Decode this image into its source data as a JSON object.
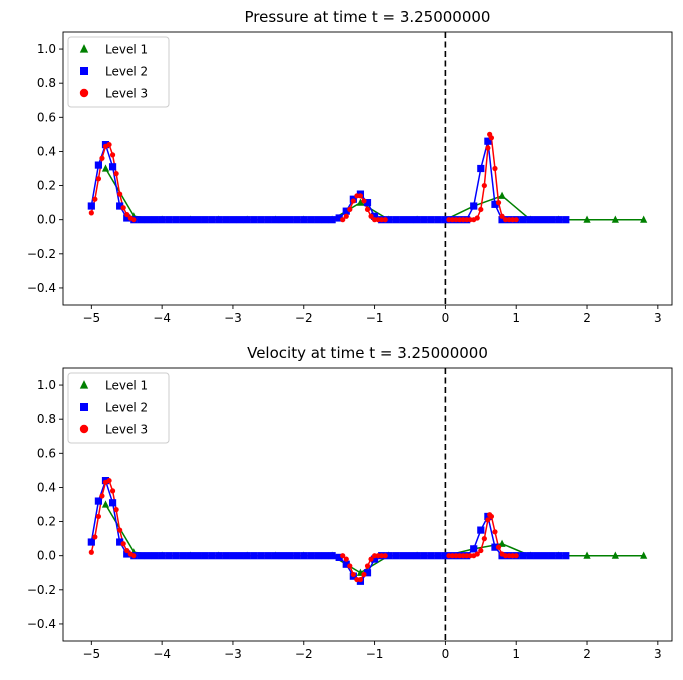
{
  "chart_data": [
    {
      "type": "line",
      "title": "Pressure at time t =     3.25000000",
      "xlabel": "",
      "ylabel": "",
      "xlim": [
        -5.4,
        3.2
      ],
      "ylim": [
        -0.5,
        1.1
      ],
      "xticks": [
        -5,
        -4,
        -3,
        -2,
        -1,
        0,
        1,
        2,
        3
      ],
      "xtick_labels": [
        "−5",
        "−4",
        "−3",
        "−2",
        "−1",
        "0",
        "1",
        "2",
        "3"
      ],
      "yticks": [
        -0.4,
        -0.2,
        0.0,
        0.2,
        0.4,
        0.6,
        0.8,
        1.0
      ],
      "ytick_labels": [
        "−0.4",
        "−0.2",
        "0.0",
        "0.2",
        "0.4",
        "0.6",
        "0.8",
        "1.0"
      ],
      "grid": false,
      "legend_position": "top-left",
      "vline_x": 0,
      "series": [
        {
          "name": "Level 1",
          "marker": "triangle",
          "color": "#008000",
          "x": [
            -4.8,
            -4.4,
            -4.0,
            -3.6,
            -3.2,
            -2.8,
            -2.4,
            -2.0,
            -1.6,
            -1.2,
            -0.8,
            -0.4,
            0.0,
            0.4,
            0.8,
            1.2,
            1.6,
            2.0,
            2.4,
            2.8
          ],
          "y": [
            0.3,
            0.02,
            0.0,
            0.0,
            0.0,
            0.0,
            0.0,
            0.0,
            0.0,
            0.1,
            0.0,
            0.0,
            0.0,
            0.08,
            0.14,
            0.0,
            0.0,
            0.0,
            0.0,
            0.0
          ]
        },
        {
          "name": "Level 2",
          "marker": "square",
          "color": "#0000ff",
          "x": [
            -5.0,
            -4.9,
            -4.8,
            -4.7,
            -4.6,
            -4.5,
            -4.4,
            -4.3,
            -4.2,
            -4.1,
            -4.0,
            -3.9,
            -3.8,
            -3.7,
            -3.6,
            -3.5,
            -3.4,
            -3.3,
            -3.2,
            -3.1,
            -3.0,
            -2.9,
            -2.8,
            -2.7,
            -2.6,
            -2.5,
            -2.4,
            -2.3,
            -2.2,
            -2.1,
            -2.0,
            -1.9,
            -1.8,
            -1.7,
            -1.6,
            -1.5,
            -1.4,
            -1.3,
            -1.2,
            -1.1,
            -1.0,
            -0.9,
            -0.8,
            -0.7,
            -0.6,
            -0.5,
            -0.4,
            -0.3,
            -0.2,
            -0.1,
            0.0,
            0.1,
            0.2,
            0.3,
            0.4,
            0.5,
            0.6,
            0.7,
            0.8,
            0.9,
            1.0,
            1.1,
            1.2,
            1.3,
            1.4,
            1.5,
            1.6,
            1.7
          ],
          "y": [
            0.08,
            0.32,
            0.44,
            0.31,
            0.08,
            0.01,
            0.0,
            0.0,
            0.0,
            0.0,
            0.0,
            0.0,
            0.0,
            0.0,
            0.0,
            0.0,
            0.0,
            0.0,
            0.0,
            0.0,
            0.0,
            0.0,
            0.0,
            0.0,
            0.0,
            0.0,
            0.0,
            0.0,
            0.0,
            0.0,
            0.0,
            0.0,
            0.0,
            0.0,
            0.0,
            0.01,
            0.05,
            0.12,
            0.15,
            0.1,
            0.02,
            0.0,
            0.0,
            0.0,
            0.0,
            0.0,
            0.0,
            0.0,
            0.0,
            0.0,
            0.0,
            0.0,
            0.0,
            0.0,
            0.08,
            0.3,
            0.46,
            0.09,
            0.0,
            0.0,
            0.0,
            0.0,
            0.0,
            0.0,
            0.0,
            0.0,
            0.0,
            0.0
          ]
        },
        {
          "name": "Level 3",
          "marker": "circle",
          "color": "#ff0000",
          "x": [
            -5.0,
            -4.95,
            -4.9,
            -4.85,
            -4.8,
            -4.75,
            -4.7,
            -4.65,
            -4.6,
            -4.55,
            -4.5,
            -4.45,
            -4.4,
            -1.45,
            -1.4,
            -1.35,
            -1.3,
            -1.25,
            -1.2,
            -1.15,
            -1.1,
            -1.05,
            -1.0,
            -0.95,
            -0.9,
            -0.85,
            0.05,
            0.1,
            0.15,
            0.2,
            0.25,
            0.3,
            0.35,
            0.4,
            0.45,
            0.5,
            0.55,
            0.6,
            0.625,
            0.65,
            0.7,
            0.75,
            0.8,
            0.85,
            0.9,
            0.95,
            1.0
          ],
          "y": [
            0.04,
            0.12,
            0.24,
            0.36,
            0.43,
            0.44,
            0.38,
            0.27,
            0.15,
            0.07,
            0.03,
            0.01,
            0.0,
            0.0,
            0.02,
            0.06,
            0.11,
            0.14,
            0.14,
            0.11,
            0.06,
            0.02,
            0.0,
            0.0,
            0.0,
            0.0,
            0.0,
            0.0,
            0.0,
            0.0,
            0.0,
            0.0,
            0.0,
            0.0,
            0.01,
            0.06,
            0.2,
            0.42,
            0.5,
            0.48,
            0.3,
            0.1,
            0.02,
            0.0,
            0.0,
            0.0,
            0.0
          ]
        }
      ]
    },
    {
      "type": "line",
      "title": "Velocity at time t =     3.25000000",
      "xlabel": "",
      "ylabel": "",
      "xlim": [
        -5.4,
        3.2
      ],
      "ylim": [
        -0.5,
        1.1
      ],
      "xticks": [
        -5,
        -4,
        -3,
        -2,
        -1,
        0,
        1,
        2,
        3
      ],
      "xtick_labels": [
        "−5",
        "−4",
        "−3",
        "−2",
        "−1",
        "0",
        "1",
        "2",
        "3"
      ],
      "yticks": [
        -0.4,
        -0.2,
        0.0,
        0.2,
        0.4,
        0.6,
        0.8,
        1.0
      ],
      "ytick_labels": [
        "−0.4",
        "−0.2",
        "0.0",
        "0.2",
        "0.4",
        "0.6",
        "0.8",
        "1.0"
      ],
      "grid": false,
      "legend_position": "top-left",
      "vline_x": 0,
      "series": [
        {
          "name": "Level 1",
          "marker": "triangle",
          "color": "#008000",
          "x": [
            -4.8,
            -4.4,
            -4.0,
            -3.6,
            -3.2,
            -2.8,
            -2.4,
            -2.0,
            -1.6,
            -1.2,
            -0.8,
            -0.4,
            0.0,
            0.4,
            0.8,
            1.2,
            1.6,
            2.0,
            2.4,
            2.8
          ],
          "y": [
            0.3,
            0.02,
            0.0,
            0.0,
            0.0,
            0.0,
            0.0,
            0.0,
            0.0,
            -0.1,
            0.0,
            0.0,
            0.0,
            0.04,
            0.07,
            0.0,
            0.0,
            0.0,
            0.0,
            0.0
          ]
        },
        {
          "name": "Level 2",
          "marker": "square",
          "color": "#0000ff",
          "x": [
            -5.0,
            -4.9,
            -4.8,
            -4.7,
            -4.6,
            -4.5,
            -4.4,
            -4.3,
            -4.2,
            -4.1,
            -4.0,
            -3.9,
            -3.8,
            -3.7,
            -3.6,
            -3.5,
            -3.4,
            -3.3,
            -3.2,
            -3.1,
            -3.0,
            -2.9,
            -2.8,
            -2.7,
            -2.6,
            -2.5,
            -2.4,
            -2.3,
            -2.2,
            -2.1,
            -2.0,
            -1.9,
            -1.8,
            -1.7,
            -1.6,
            -1.5,
            -1.4,
            -1.3,
            -1.2,
            -1.1,
            -1.0,
            -0.9,
            -0.8,
            -0.7,
            -0.6,
            -0.5,
            -0.4,
            -0.3,
            -0.2,
            -0.1,
            0.0,
            0.1,
            0.2,
            0.3,
            0.4,
            0.5,
            0.6,
            0.7,
            0.8,
            0.9,
            1.0,
            1.1,
            1.2,
            1.3,
            1.4,
            1.5,
            1.6,
            1.7
          ],
          "y": [
            0.08,
            0.32,
            0.44,
            0.31,
            0.08,
            0.01,
            0.0,
            0.0,
            0.0,
            0.0,
            0.0,
            0.0,
            0.0,
            0.0,
            0.0,
            0.0,
            0.0,
            0.0,
            0.0,
            0.0,
            0.0,
            0.0,
            0.0,
            0.0,
            0.0,
            0.0,
            0.0,
            0.0,
            0.0,
            0.0,
            0.0,
            0.0,
            0.0,
            0.0,
            0.0,
            -0.01,
            -0.05,
            -0.12,
            -0.15,
            -0.1,
            -0.02,
            0.0,
            0.0,
            0.0,
            0.0,
            0.0,
            0.0,
            0.0,
            0.0,
            0.0,
            0.0,
            0.0,
            0.0,
            0.0,
            0.04,
            0.15,
            0.23,
            0.05,
            0.0,
            0.0,
            0.0,
            0.0,
            0.0,
            0.0,
            0.0,
            0.0,
            0.0,
            0.0
          ]
        },
        {
          "name": "Level 3",
          "marker": "circle",
          "color": "#ff0000",
          "x": [
            -5.0,
            -4.95,
            -4.9,
            -4.85,
            -4.8,
            -4.75,
            -4.7,
            -4.65,
            -4.6,
            -4.55,
            -4.5,
            -4.45,
            -4.4,
            -1.45,
            -1.4,
            -1.35,
            -1.3,
            -1.25,
            -1.2,
            -1.15,
            -1.1,
            -1.05,
            -1.0,
            -0.95,
            -0.9,
            -0.85,
            0.05,
            0.1,
            0.15,
            0.2,
            0.25,
            0.3,
            0.35,
            0.4,
            0.45,
            0.5,
            0.55,
            0.6,
            0.625,
            0.65,
            0.7,
            0.75,
            0.8,
            0.85,
            0.9,
            0.95,
            1.0
          ],
          "y": [
            0.02,
            0.11,
            0.23,
            0.35,
            0.43,
            0.44,
            0.38,
            0.27,
            0.15,
            0.07,
            0.03,
            0.01,
            0.0,
            0.0,
            -0.02,
            -0.06,
            -0.11,
            -0.14,
            -0.14,
            -0.11,
            -0.06,
            -0.02,
            0.0,
            0.0,
            0.0,
            0.0,
            0.0,
            0.0,
            0.0,
            0.0,
            0.0,
            0.0,
            0.0,
            0.0,
            0.01,
            0.03,
            0.1,
            0.21,
            0.24,
            0.23,
            0.14,
            0.05,
            0.01,
            0.0,
            0.0,
            0.0,
            0.0
          ]
        }
      ]
    }
  ]
}
